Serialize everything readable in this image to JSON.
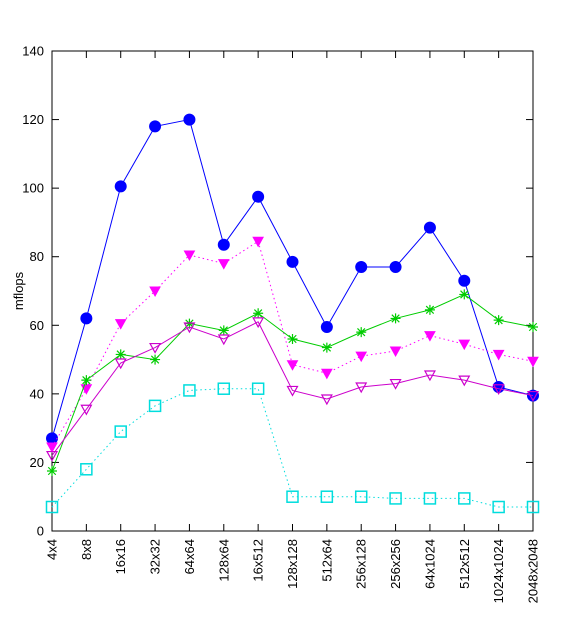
{
  "chart_data": {
    "type": "line",
    "title": "",
    "xlabel": "",
    "ylabel": "mflops",
    "ylim": [
      0,
      140
    ],
    "yticks": [
      0,
      20,
      40,
      60,
      80,
      100,
      120,
      140
    ],
    "grid": false,
    "legend": "none",
    "categories": [
      "4x4",
      "8x8",
      "16x16",
      "32x32",
      "64x64",
      "128x64",
      "16x512",
      "128x128",
      "512x64",
      "256x128",
      "256x256",
      "64x1024",
      "512x512",
      "1024x1024",
      "2048x2048"
    ],
    "series": [
      {
        "color": "#0000ff",
        "line": "solid",
        "marker": "filled-circle",
        "values": [
          27,
          62,
          100.5,
          118,
          120,
          83.5,
          97.5,
          78.5,
          59.5,
          77,
          77,
          88.5,
          73,
          42,
          39.5
        ]
      },
      {
        "color": "#ff00ff",
        "line": "dotted",
        "marker": "filled-triangle-down",
        "values": [
          24.5,
          41.5,
          60.5,
          70,
          80.5,
          78,
          84.5,
          48.5,
          46,
          51,
          52.5,
          57,
          54.5,
          51.5,
          49.5
        ]
      },
      {
        "color": "#00cc00",
        "line": "solid",
        "marker": "star",
        "values": [
          17.5,
          44,
          51.5,
          50,
          60.5,
          58.5,
          63.5,
          56,
          53.5,
          58,
          62,
          64.5,
          69,
          61.5,
          59.5
        ]
      },
      {
        "color": "#cc00cc",
        "line": "solid",
        "marker": "open-triangle-down",
        "values": [
          22,
          35.5,
          49,
          53.5,
          59.5,
          56,
          61,
          41,
          38.5,
          42,
          43,
          45.5,
          44,
          41.5,
          39.5
        ]
      },
      {
        "color": "#00dddd",
        "line": "dotted",
        "marker": "open-square",
        "values": [
          7,
          18,
          29,
          36.5,
          41,
          41.5,
          41.5,
          10,
          10,
          10,
          9.5,
          9.5,
          9.5,
          7,
          7
        ]
      }
    ]
  }
}
